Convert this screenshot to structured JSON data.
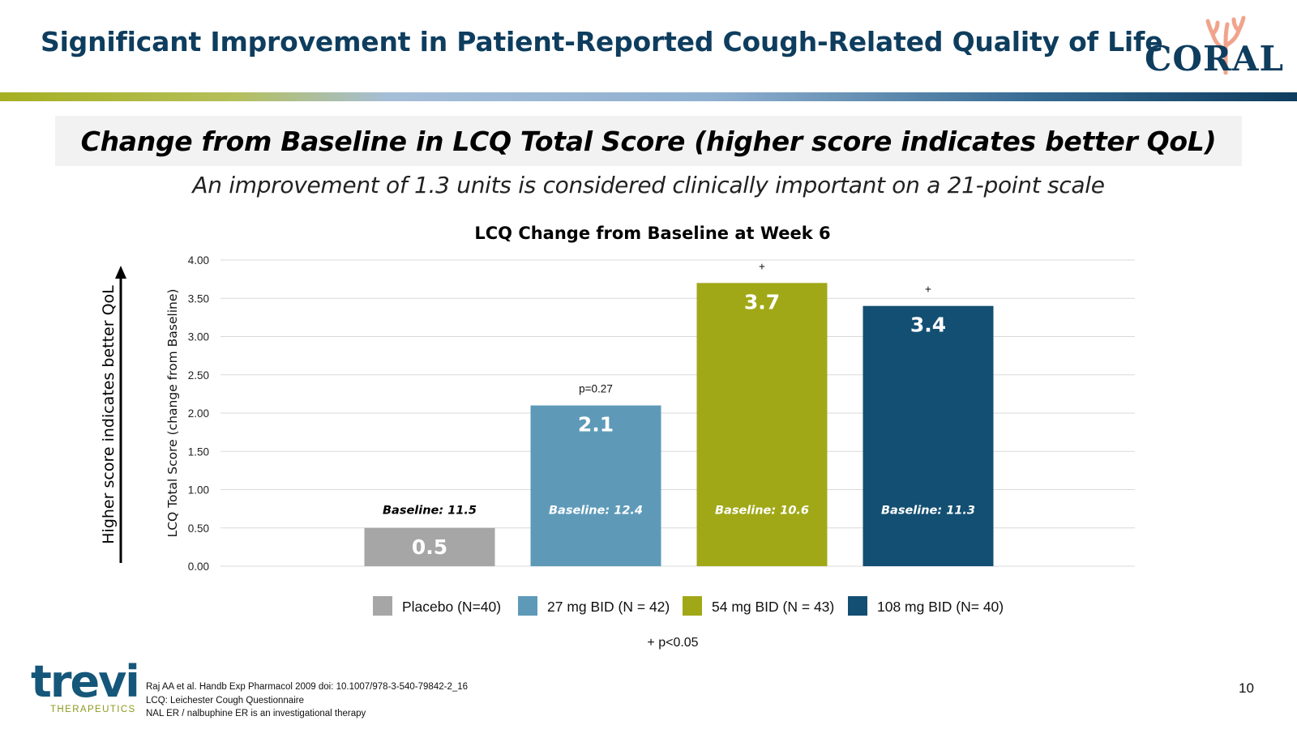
{
  "slide": {
    "title": "Significant Improvement in Patient-Reported Cough-Related Quality of Life",
    "header_box_text": "Change from Baseline in LCQ Total Score (higher score indicates better QoL)",
    "subheader": "An improvement of 1.3 units is considered clinically important on a 21-point scale",
    "side_arrow_label": "Higher score indicates better QoL",
    "significance_footnote": "+ p<0.05",
    "page_number": "10"
  },
  "logos": {
    "coral": "CORAL",
    "trevi": "trevi",
    "trevi_sub": "THERAPEUTICS"
  },
  "references": [
    "Raj AA et al. Handb Exp Pharmacol 2009 doi: 10.1007/978-3-540-79842-2_16",
    "LCQ: Leichester Cough Questionnaire",
    "NAL ER / nalbuphine ER is an investigational therapy"
  ],
  "chart_data": {
    "type": "bar",
    "title": "LCQ Change from Baseline at Week 6",
    "ylabel": "LCQ Total Score (change from Baseline)",
    "xlabel": "",
    "ylim": [
      0,
      4
    ],
    "yticks": [
      "0.00",
      "0.50",
      "1.00",
      "1.50",
      "2.00",
      "2.50",
      "3.00",
      "3.50",
      "4.00"
    ],
    "grid": true,
    "legend_position": "bottom",
    "categories": [
      "Placebo (N=40)",
      "27 mg BID (N = 42)",
      "54 mg BID (N = 43)",
      "108 mg BID (N= 40)"
    ],
    "values": [
      0.5,
      2.1,
      3.7,
      3.4
    ],
    "value_labels": [
      "0.5",
      "2.1",
      "3.7",
      "3.4"
    ],
    "baseline_labels": [
      "Baseline: 11.5",
      "Baseline: 12.4",
      "Baseline: 10.6",
      "Baseline: 11.3"
    ],
    "annotations": [
      "",
      "p=0.27",
      "+",
      "+"
    ],
    "colors": [
      "#a6a6a6",
      "#5e9ab8",
      "#a1a817",
      "#134f72"
    ]
  }
}
